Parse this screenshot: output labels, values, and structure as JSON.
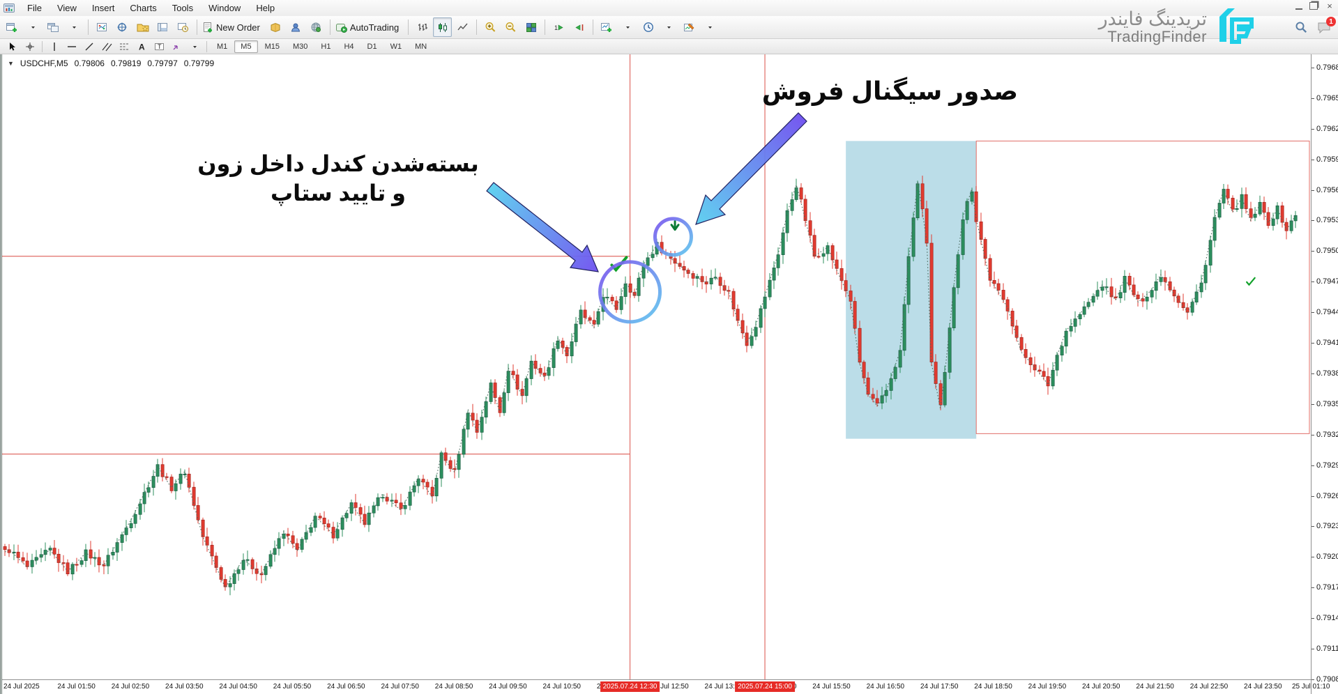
{
  "window": {
    "minimize": "",
    "restore": "",
    "close": "×"
  },
  "menu": {
    "items": [
      "File",
      "View",
      "Insert",
      "Charts",
      "Tools",
      "Window",
      "Help"
    ]
  },
  "toolbar": {
    "new_order_label": "New Order",
    "autotrading_label": "AutoTrading",
    "timeframes": [
      "M1",
      "M5",
      "M15",
      "M30",
      "H1",
      "H4",
      "D1",
      "W1",
      "MN"
    ],
    "active_timeframe": "M5"
  },
  "brand": {
    "name_fa": "تریدینگ فایندر",
    "name_en": "TradingFinder",
    "accent": "#1fd0e8",
    "notification_count": "1"
  },
  "symbol_line": {
    "arrow": "▼",
    "symbol": "USDCHF,M5",
    "open": "0.79806",
    "high": "0.79819",
    "low": "0.79797",
    "close": "0.79799"
  },
  "annotations": {
    "sell_signal": "صدور سیگنال فروش",
    "zone_note_line1": "بسته‌شدن کندل داخل زون",
    "zone_note_line2": "و تایید ستاپ"
  },
  "chart_data": {
    "type": "candlestick",
    "symbol": "USDCHF",
    "timeframe": "M5",
    "y_ticks": [
      "0.79680",
      "0.79650",
      "0.79620",
      "0.79590",
      "0.79560",
      "0.79530",
      "0.79500",
      "0.79470",
      "0.79440",
      "0.79410",
      "0.79380",
      "0.79350",
      "0.79320",
      "0.79290",
      "0.79260",
      "0.79230",
      "0.79200",
      "0.79170",
      "0.79140",
      "0.79110",
      "0.79080"
    ],
    "x_labels": [
      "24 Jul 2025",
      "24 Jul 01:50",
      "24 Jul 02:50",
      "24 Jul 03:50",
      "24 Jul 04:50",
      "24 Jul 05:50",
      "24 Jul 06:50",
      "24 Jul 07:50",
      "24 Jul 08:50",
      "24 Jul 09:50",
      "24 Jul 10:50",
      "24 Jul 11:50",
      "24 Jul 12:50",
      "24 Jul 13:50",
      "24 Jul 14:50",
      "24 Jul 15:50",
      "24 Jul 16:50",
      "24 Jul 17:50",
      "24 Jul 18:50",
      "24 Jul 19:50",
      "24 Jul 20:50",
      "24 Jul 21:50",
      "24 Jul 22:50",
      "24 Jul 23:50",
      "25 Jul 01:10"
    ],
    "price_range": {
      "top": 0.7968,
      "bottom": 0.7908,
      "step": 0.0003
    },
    "candle_count": 288,
    "vlines": [
      {
        "time": "2025.07.24 12:30",
        "idx": 139
      },
      {
        "time": "2025.07.24 15:00",
        "idx": 169
      }
    ],
    "hlines": [
      {
        "price": 0.79495,
        "from_idx": 0,
        "to_idx": 139
      },
      {
        "price": 0.79301,
        "from_idx": 0,
        "to_idx": 139
      }
    ],
    "blue_zone": {
      "from_idx": 187,
      "to_idx": 216,
      "price_top": 0.79608,
      "price_bottom": 0.79316
    },
    "red_box": {
      "from_idx": 216,
      "price_top": 0.79608,
      "price_bottom": 0.79321
    },
    "markers": [
      {
        "type": "check",
        "idx": 136.5,
        "price": 0.79487,
        "size": 1
      },
      {
        "type": "sell-arrow",
        "idx": 149,
        "price": 0.79521,
        "size": 1
      },
      {
        "type": "check",
        "idx": 277,
        "price": 0.7947,
        "size": 0.55
      }
    ],
    "circles": [
      {
        "idx": 139,
        "price": 0.7946,
        "r": 43
      },
      {
        "idx": 148.6,
        "price": 0.79514,
        "r": 26
      }
    ],
    "path": [
      [
        0,
        0.79205
      ],
      [
        1,
        0.79207
      ],
      [
        5,
        0.7919
      ],
      [
        10,
        0.79207
      ],
      [
        14,
        0.79186
      ],
      [
        18,
        0.79204
      ],
      [
        22,
        0.79192
      ],
      [
        28,
        0.79236
      ],
      [
        34,
        0.79289
      ],
      [
        37,
        0.79268
      ],
      [
        40,
        0.79284
      ],
      [
        44,
        0.7922
      ],
      [
        49,
        0.7917
      ],
      [
        53,
        0.79198
      ],
      [
        57,
        0.79183
      ],
      [
        62,
        0.79225
      ],
      [
        65,
        0.79206
      ],
      [
        69,
        0.7924
      ],
      [
        73,
        0.79222
      ],
      [
        77,
        0.79252
      ],
      [
        80,
        0.79233
      ],
      [
        84,
        0.79262
      ],
      [
        88,
        0.79246
      ],
      [
        92,
        0.79278
      ],
      [
        95,
        0.79259
      ],
      [
        97,
        0.793
      ],
      [
        100,
        0.79283
      ],
      [
        103,
        0.79344
      ],
      [
        105,
        0.79323
      ],
      [
        108,
        0.79369
      ],
      [
        110,
        0.79343
      ],
      [
        112,
        0.79385
      ],
      [
        115,
        0.79358
      ],
      [
        117,
        0.79392
      ],
      [
        120,
        0.79376
      ],
      [
        123,
        0.79415
      ],
      [
        125,
        0.79398
      ],
      [
        128,
        0.7944
      ],
      [
        131,
        0.79425
      ],
      [
        133,
        0.79457
      ],
      [
        136,
        0.79444
      ],
      [
        138,
        0.7947
      ],
      [
        140,
        0.79456
      ],
      [
        142,
        0.79487
      ],
      [
        145,
        0.79506
      ],
      [
        148,
        0.79493
      ],
      [
        152,
        0.79479
      ],
      [
        156,
        0.79469
      ],
      [
        158,
        0.79475
      ],
      [
        161,
        0.79459
      ],
      [
        163,
        0.79431
      ],
      [
        165,
        0.7941
      ],
      [
        167,
        0.79428
      ],
      [
        170,
        0.7947
      ],
      [
        172,
        0.79498
      ],
      [
        174,
        0.79538
      ],
      [
        176,
        0.79565
      ],
      [
        178,
        0.79531
      ],
      [
        180,
        0.79495
      ],
      [
        183,
        0.79504
      ],
      [
        185,
        0.79481
      ],
      [
        188,
        0.79452
      ],
      [
        190,
        0.79391
      ],
      [
        192,
        0.79359
      ],
      [
        194,
        0.79348
      ],
      [
        196,
        0.79363
      ],
      [
        199,
        0.79401
      ],
      [
        201,
        0.79494
      ],
      [
        203,
        0.79568
      ],
      [
        205,
        0.79509
      ],
      [
        206,
        0.79391
      ],
      [
        208,
        0.79346
      ],
      [
        209,
        0.79379
      ],
      [
        211,
        0.79466
      ],
      [
        213,
        0.79533
      ],
      [
        215,
        0.79561
      ],
      [
        216,
        0.79531
      ],
      [
        219,
        0.79473
      ],
      [
        221,
        0.79459
      ],
      [
        223,
        0.79444
      ],
      [
        226,
        0.79401
      ],
      [
        229,
        0.79386
      ],
      [
        232,
        0.79369
      ],
      [
        234,
        0.79398
      ],
      [
        236,
        0.79422
      ],
      [
        239,
        0.79438
      ],
      [
        242,
        0.79455
      ],
      [
        244,
        0.79467
      ],
      [
        247,
        0.79452
      ],
      [
        249,
        0.79473
      ],
      [
        252,
        0.7945
      ],
      [
        255,
        0.79462
      ],
      [
        257,
        0.79477
      ],
      [
        260,
        0.79458
      ],
      [
        263,
        0.7944
      ],
      [
        266,
        0.79468
      ],
      [
        269,
        0.79532
      ],
      [
        271,
        0.7956
      ],
      [
        273,
        0.79538
      ],
      [
        275,
        0.79552
      ],
      [
        277,
        0.7953
      ],
      [
        279,
        0.79545
      ],
      [
        281,
        0.79528
      ],
      [
        283,
        0.79541
      ],
      [
        285,
        0.79521
      ],
      [
        287,
        0.79535
      ]
    ],
    "colors": {
      "up": "#2c8f5e",
      "up_dark": "#1b5e43",
      "down": "#e13b30",
      "down_dark": "#a3261e",
      "zigzag": "#49695c",
      "line_red": "#e06c66",
      "zone_fill": "#b4d9e6",
      "badge_red": "#e62b26",
      "circle_purple": "#7a52ee",
      "circle_cyan": "#5fc9ee"
    }
  }
}
